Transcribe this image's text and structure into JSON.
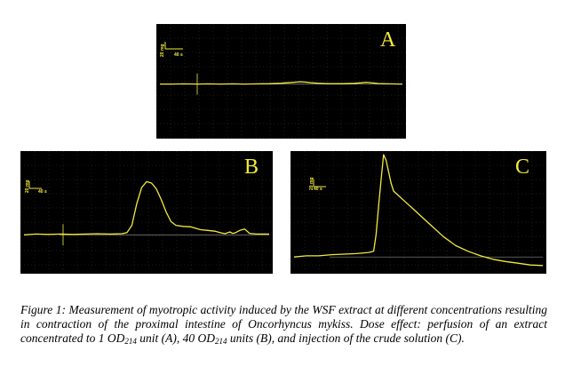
{
  "colors": {
    "panel_bg": "#000000",
    "trace": "#f2ea3c",
    "grid": "#2e3b2e",
    "baseline": "#8a8a8a"
  },
  "scale_bar": {
    "force": "20 mg",
    "time": "40 s"
  },
  "caption": {
    "prefix": "Figure 1: Measurement of myotropic activity induced by the WSF extract at different concentrations resulting in contraction of the proximal intestine of Oncorhyncus mykiss. Dose effect: perfusion of an extract concentrated to 1 OD",
    "sub1": "214",
    "mid1": " unit (A), 40 OD",
    "sub2": "214",
    "mid2": " units (B), and injection of the crude solution (C)."
  },
  "chart_data": [
    {
      "type": "line",
      "panel": "A",
      "title": "A",
      "xlabel": "",
      "ylabel": "",
      "grid": true,
      "xlim": [
        0,
        100
      ],
      "ylim": [
        0,
        100
      ],
      "series": [
        {
          "x": [
            0,
            5,
            10,
            15,
            20,
            25,
            30,
            35,
            40,
            45,
            50,
            52,
            55,
            58,
            60,
            62,
            65,
            68,
            70,
            75,
            80,
            83,
            85,
            88,
            90,
            95,
            100
          ],
          "y": [
            6,
            6,
            6.5,
            6,
            6.5,
            6,
            6.5,
            6,
            6.5,
            7,
            8.5,
            9.5,
            11,
            12.5,
            11.5,
            10,
            8.5,
            7.5,
            7,
            7,
            8,
            9.5,
            11,
            9,
            7.5,
            6.5,
            6
          ]
        }
      ]
    },
    {
      "type": "line",
      "panel": "B",
      "title": "B",
      "xlabel": "",
      "ylabel": "",
      "grid": true,
      "xlim": [
        0,
        100
      ],
      "ylim": [
        0,
        100
      ],
      "series": [
        {
          "x": [
            0,
            5,
            10,
            15,
            20,
            25,
            30,
            35,
            40,
            42,
            44,
            46,
            48,
            50,
            52,
            54,
            56,
            58,
            60,
            62,
            65,
            68,
            70,
            72,
            75,
            78,
            80,
            82,
            84,
            85,
            86,
            88,
            90,
            92,
            95,
            100
          ],
          "y": [
            7,
            8,
            7.5,
            8,
            7.5,
            8,
            8.5,
            8,
            8.5,
            10,
            20,
            50,
            72,
            80,
            78,
            70,
            55,
            38,
            25,
            20,
            18.5,
            18,
            16,
            14,
            13,
            12,
            10,
            8.5,
            11,
            9,
            9.5,
            13,
            15,
            9,
            8,
            8
          ]
        }
      ]
    },
    {
      "type": "line",
      "panel": "C",
      "title": "C",
      "xlabel": "",
      "ylabel": "",
      "grid": true,
      "xlim": [
        0,
        100
      ],
      "ylim": [
        0,
        100
      ],
      "series": [
        {
          "x": [
            0,
            5,
            10,
            15,
            20,
            25,
            30,
            32,
            33,
            34,
            35,
            36,
            37,
            38,
            39,
            40,
            42,
            45,
            48,
            50,
            55,
            60,
            65,
            70,
            75,
            80,
            85,
            90,
            95,
            100
          ],
          "y": [
            10,
            11,
            11,
            12,
            12.5,
            13,
            14,
            15,
            30,
            55,
            78,
            100,
            95,
            85,
            75,
            68,
            64,
            58,
            52,
            48,
            38,
            28,
            20,
            15,
            11,
            8,
            6,
            4.5,
            3,
            2.5
          ]
        }
      ]
    }
  ]
}
